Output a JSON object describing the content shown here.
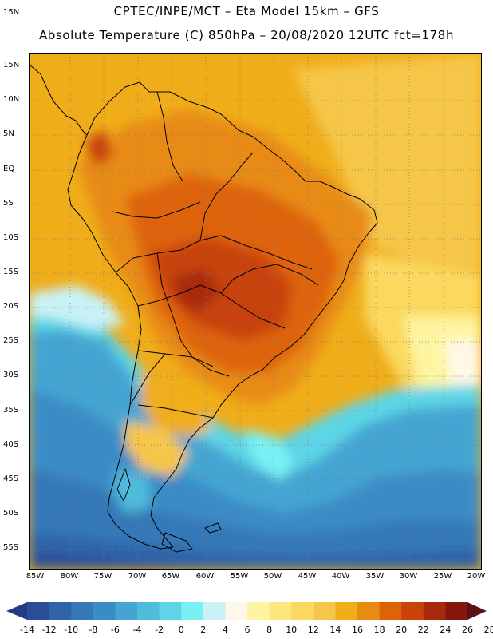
{
  "header": {
    "line1": "CPTEC/INPE/MCT  –   Eta Model 15km  –  GFS",
    "line2": "Absolute Temperature (C) 850hPa – 20/08/2020 12UTC fct=178h"
  },
  "map": {
    "lat_labels": [
      "15N",
      "10N",
      "5N",
      "EQ",
      "5S",
      "10S",
      "15S",
      "20S",
      "25S",
      "30S",
      "35S",
      "40S",
      "45S",
      "50S",
      "55S"
    ],
    "lon_labels": [
      "85W",
      "80W",
      "75W",
      "70W",
      "65W",
      "60W",
      "55W",
      "50W",
      "45W",
      "40W",
      "35W",
      "30W",
      "25W",
      "20W"
    ],
    "lat_range": [
      -58,
      16.5
    ],
    "lon_range": [
      -86,
      -19.5
    ]
  },
  "colorbar": {
    "labels": [
      "-14",
      "-12",
      "-10",
      "-8",
      "-6",
      "-4",
      "-2",
      "0",
      "2",
      "4",
      "6",
      "8",
      "10",
      "12",
      "14",
      "16",
      "18",
      "20",
      "22",
      "24",
      "26",
      "28"
    ],
    "colors": [
      "#213c84",
      "#2b4d97",
      "#2f63aa",
      "#3478b8",
      "#3a8cc6",
      "#45a5d2",
      "#4fbcdc",
      "#5dd5e6",
      "#79f0f4",
      "#c9f2f6",
      "#fff8e8",
      "#fef5a3",
      "#fde77e",
      "#fbd95e",
      "#f6c64a",
      "#f0ad1a",
      "#e88b12",
      "#de6308",
      "#c8420a",
      "#a8290a",
      "#84180c",
      "#5e0f18"
    ]
  }
}
